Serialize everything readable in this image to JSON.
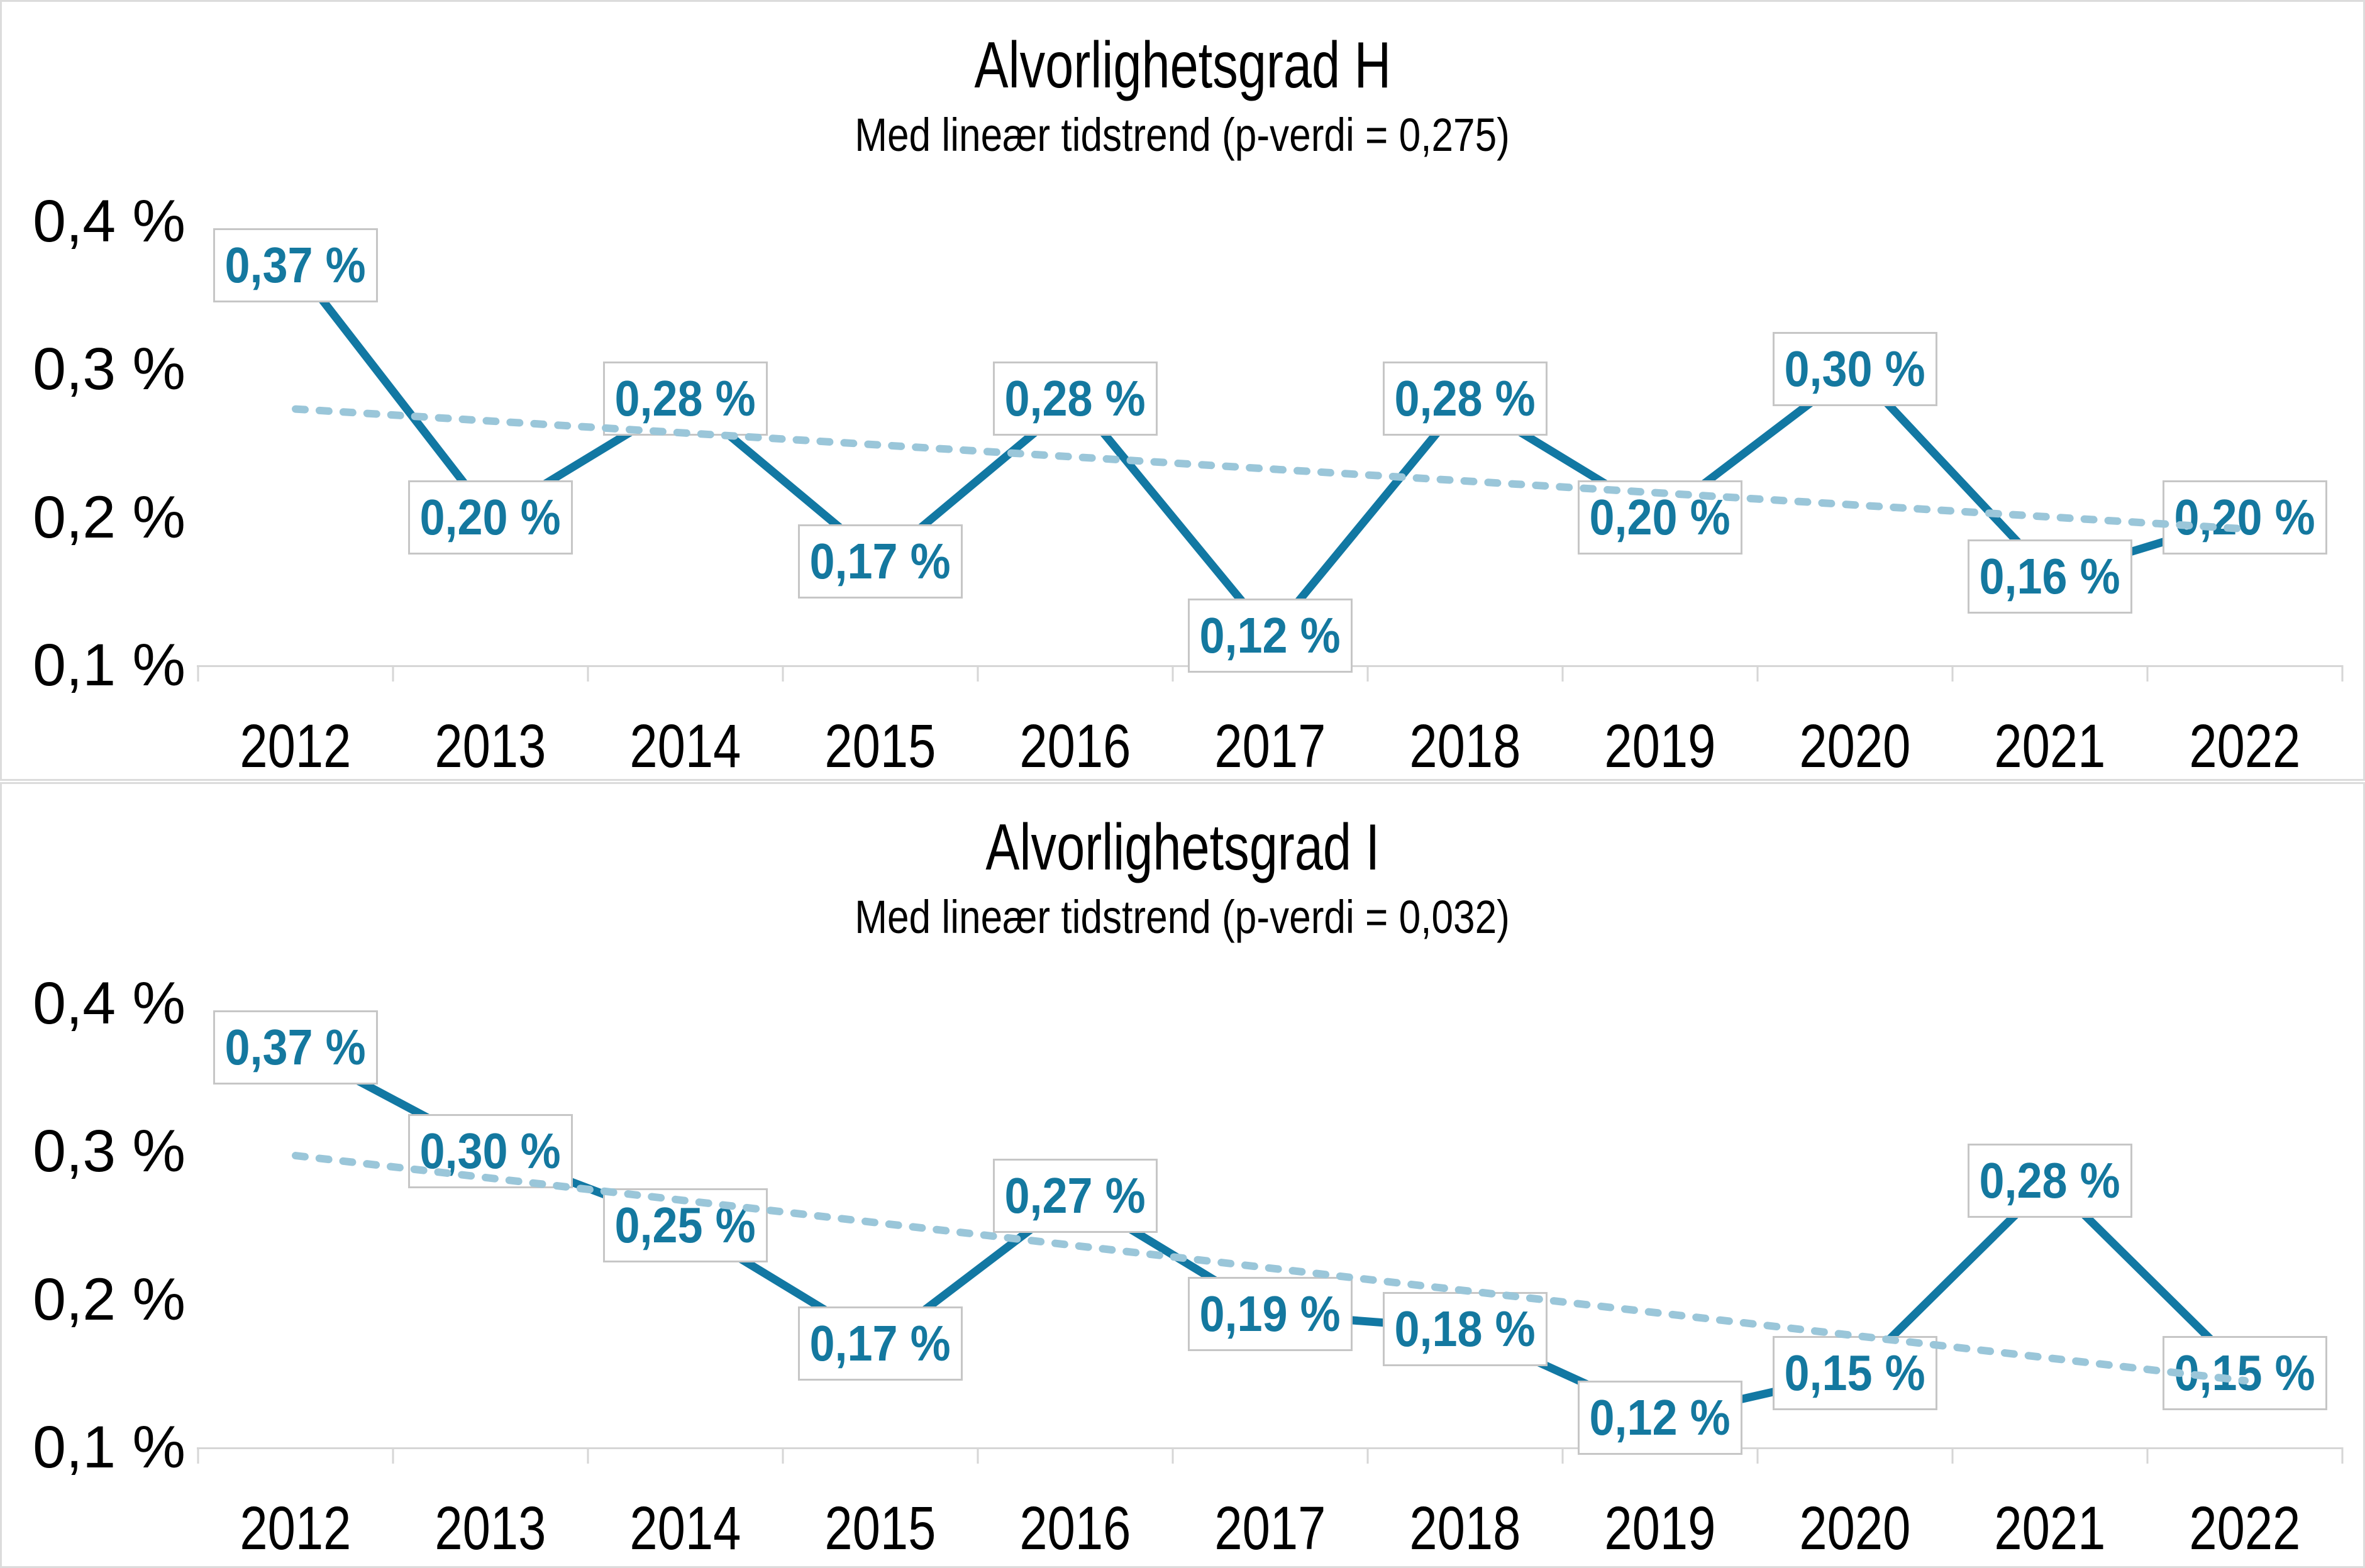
{
  "colors": {
    "series_line": "#1278a3",
    "trend_line": "#9ac6d9",
    "data_label_text": "#14789f",
    "data_label_border": "#c6c6c6",
    "axis": "#d6d6d6",
    "panel_border": "#dcdcdc",
    "text": "#000000"
  },
  "chart_data": [
    {
      "type": "line",
      "title": "Alvorlighetsgrad H",
      "subtitle": "Med lineær tidstrend (p-verdi = 0,275)",
      "p_value": "0,275",
      "categories": [
        "2012",
        "2013",
        "2014",
        "2015",
        "2016",
        "2017",
        "2018",
        "2019",
        "2020",
        "2021",
        "2022"
      ],
      "values": [
        0.37,
        0.2,
        0.28,
        0.17,
        0.28,
        0.12,
        0.28,
        0.2,
        0.3,
        0.16,
        0.2
      ],
      "data_labels": [
        "0,37 %",
        "0,20 %",
        "0,28 %",
        "0,17 %",
        "0,28 %",
        "0,12 %",
        "0,28 %",
        "0,20 %",
        "0,30 %",
        "0,16 %",
        "0,20 %"
      ],
      "y_ticks": [
        "0,4 %",
        "0,3 %",
        "0,2 %",
        "0,1 %"
      ],
      "y_tick_values": [
        0.4,
        0.3,
        0.2,
        0.1
      ],
      "ylim": [
        0.1,
        0.4
      ],
      "grid": false,
      "legend": "none",
      "trend": {
        "style": "dashed",
        "start": 0.273,
        "end": 0.192
      }
    },
    {
      "type": "line",
      "title": "Alvorlighetsgrad I",
      "subtitle": "Med lineær tidstrend (p-verdi = 0,032)",
      "p_value": "0,032",
      "categories": [
        "2012",
        "2013",
        "2014",
        "2015",
        "2016",
        "2017",
        "2018",
        "2019",
        "2020",
        "2021",
        "2022"
      ],
      "values": [
        0.37,
        0.3,
        0.25,
        0.17,
        0.27,
        0.19,
        0.18,
        0.12,
        0.15,
        0.28,
        0.15
      ],
      "data_labels": [
        "0,37 %",
        "0,30 %",
        "0,25 %",
        "0,17 %",
        "0,27 %",
        "0,19 %",
        "0,18 %",
        "0,12 %",
        "0,15 %",
        "0,28 %",
        "0,15 %"
      ],
      "y_ticks": [
        "0,4 %",
        "0,3 %",
        "0,2 %",
        "0,1 %"
      ],
      "y_tick_values": [
        0.4,
        0.3,
        0.2,
        0.1
      ],
      "ylim": [
        0.1,
        0.4
      ],
      "grid": false,
      "legend": "none",
      "trend": {
        "style": "dashed",
        "start": 0.297,
        "end": 0.145
      }
    }
  ]
}
